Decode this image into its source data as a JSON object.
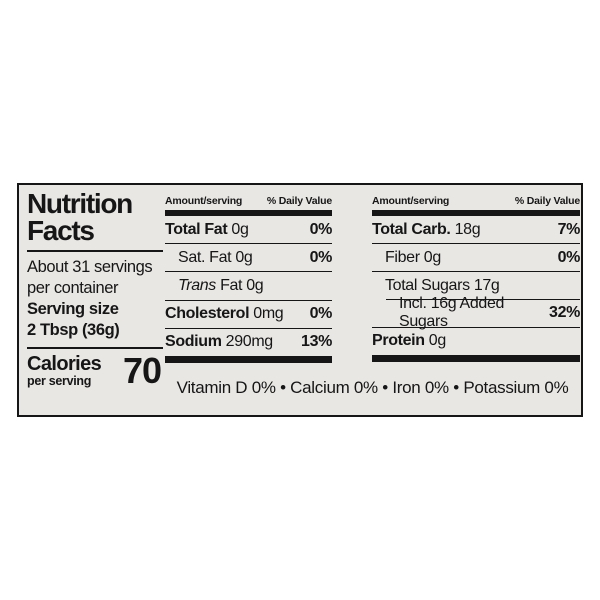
{
  "colors": {
    "page_background": "#ffffff",
    "label_background": "#e9e7e4",
    "ink": "#161616"
  },
  "nutrition_label": {
    "title": [
      "Nutrition",
      "Facts"
    ],
    "servings": {
      "line1": "About 31 servings",
      "line2": "per container"
    },
    "serving_size": {
      "label": "Serving size",
      "value": "2 Tbsp (36g)"
    },
    "calories": {
      "label": "Calories",
      "sub": "per serving",
      "value": "70"
    },
    "col_header": {
      "amount": "Amount/serving",
      "dv": "% Daily Value"
    },
    "mid_rows": [
      {
        "bold": "Total Fat",
        "italic": "",
        "text": " 0g",
        "dv": "0%"
      },
      {
        "bold": "",
        "italic": "",
        "text": "Sat. Fat 0g",
        "dv": "0%"
      },
      {
        "bold": "",
        "italic": "Trans",
        "text": " Fat 0g",
        "dv": ""
      },
      {
        "bold": "Cholesterol",
        "italic": "",
        "text": " 0mg",
        "dv": "0%"
      },
      {
        "bold": "Sodium",
        "italic": "",
        "text": " 290mg",
        "dv": "13%"
      }
    ],
    "right_rows": [
      {
        "bold": "Total Carb.",
        "italic": "",
        "text": " 18g",
        "dv": "7%"
      },
      {
        "bold": "",
        "italic": "",
        "text": "Fiber 0g",
        "dv": "0%"
      },
      {
        "bold": "",
        "italic": "",
        "text": "Total Sugars 17g",
        "dv": ""
      },
      {
        "bold": "",
        "italic": "",
        "text": "Incl. 16g Added Sugars",
        "dv": "32%"
      },
      {
        "bold": "Protein",
        "italic": "",
        "text": " 0g",
        "dv": ""
      }
    ],
    "footer": "Vitamin D 0% • Calcium 0% • Iron 0% • Potassium 0%"
  }
}
